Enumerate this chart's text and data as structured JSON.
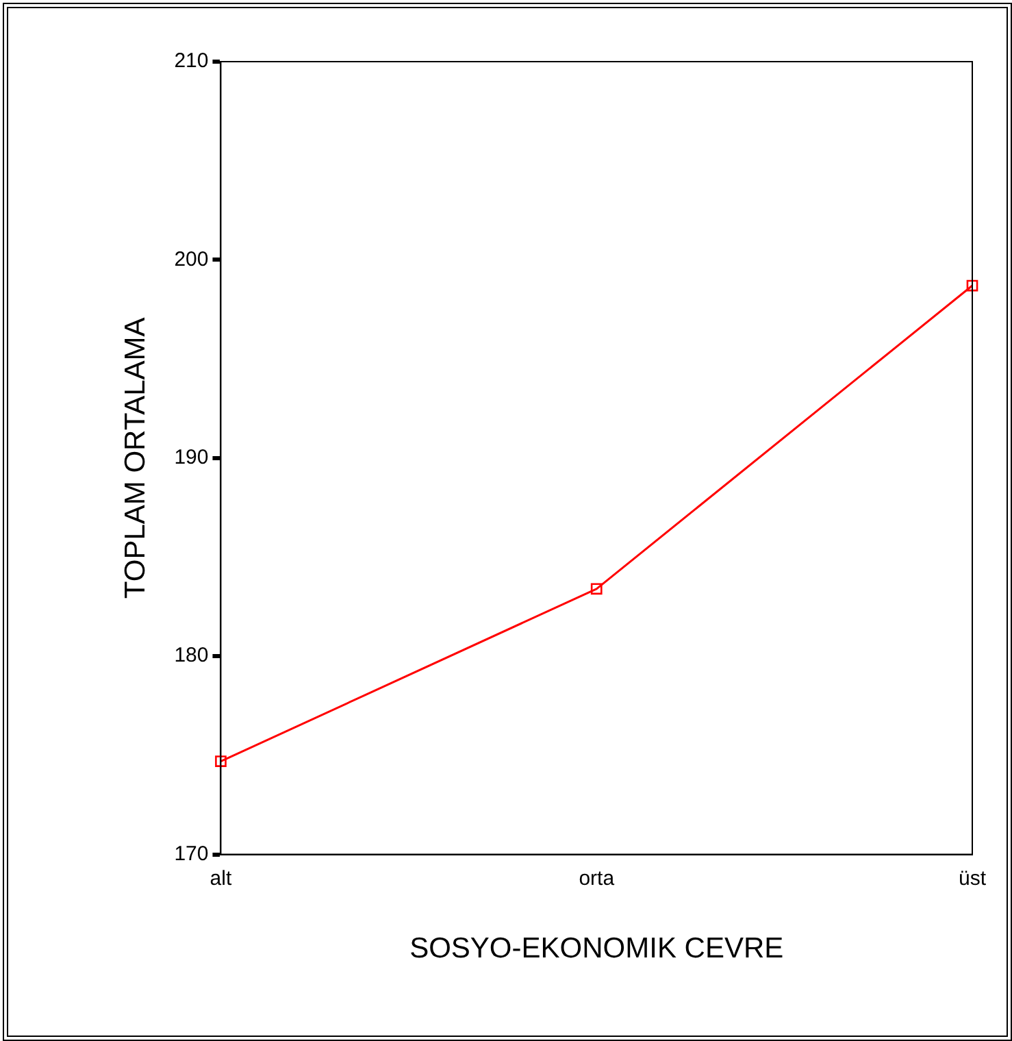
{
  "chart_data": {
    "type": "line",
    "xlabel": "SOSYO-EKONOMIK CEVRE",
    "ylabel": "TOPLAM ORTALAMA",
    "categories": [
      "alt",
      "orta",
      "üst"
    ],
    "series": [
      {
        "color": "#ff0000",
        "values": [
          174.7,
          183.4,
          198.7
        ]
      }
    ],
    "ylim": [
      170,
      210
    ],
    "yticks": [
      170,
      180,
      190,
      200,
      210
    ],
    "grid": false,
    "legend": false,
    "marker": "square",
    "line_style": "solid"
  }
}
